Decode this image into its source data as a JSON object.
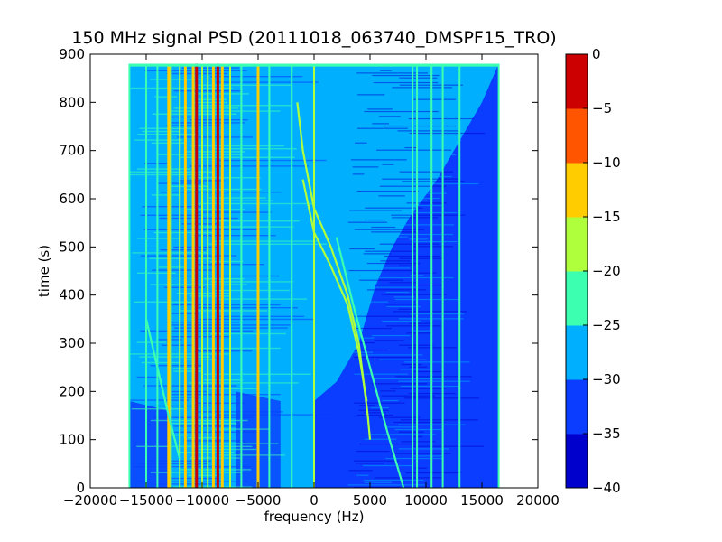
{
  "chart_data": {
    "type": "heatmap",
    "title": "150 MHz signal PSD (20111018_063740_DMSPF15_TRO)",
    "xlabel": "frequency (Hz)",
    "ylabel": "time (s)",
    "xlim": [
      -20000,
      20000
    ],
    "ylim": [
      0,
      900
    ],
    "x_ticks": [
      -20000,
      -15000,
      -10000,
      -5000,
      0,
      5000,
      10000,
      15000,
      20000
    ],
    "x_tick_labels": [
      "−20000",
      "−15000",
      "−10000",
      "−5000",
      "0",
      "5000",
      "10000",
      "15000",
      "20000"
    ],
    "y_ticks": [
      0,
      100,
      200,
      300,
      400,
      500,
      600,
      700,
      800,
      900
    ],
    "y_tick_labels": [
      "0",
      "100",
      "200",
      "300",
      "400",
      "500",
      "600",
      "700",
      "800",
      "900"
    ],
    "data_extent": {
      "freq_min": -16500,
      "freq_max": 16500,
      "time_min": 0,
      "time_max": 880
    },
    "colorbar": {
      "range": [
        -40,
        0
      ],
      "levels": [
        -40,
        -35,
        -30,
        -25,
        -20,
        -15,
        -10,
        -5,
        0
      ],
      "tick_labels": [
        "−40",
        "−35",
        "−30",
        "−25",
        "−20",
        "−15",
        "−10",
        "−5",
        "0"
      ],
      "colors": [
        "#0000cc",
        "#0a3dff",
        "#00b0ff",
        "#3dffb0",
        "#b0ff3d",
        "#ffcc00",
        "#ff5500",
        "#cc0000"
      ]
    },
    "background_level": -30,
    "lower_right_level": -35,
    "vertical_lines": [
      {
        "freq": -16500,
        "level": -25
      },
      {
        "freq": -15000,
        "level": -25
      },
      {
        "freq": -14000,
        "level": -25
      },
      {
        "freq": -13000,
        "level": -15
      },
      {
        "freq": -12800,
        "level": -20
      },
      {
        "freq": -12000,
        "level": -20
      },
      {
        "freq": -11500,
        "level": -15
      },
      {
        "freq": -10800,
        "level": -15
      },
      {
        "freq": -10500,
        "level": -5
      },
      {
        "freq": -10000,
        "level": -20
      },
      {
        "freq": -9500,
        "level": -20
      },
      {
        "freq": -9000,
        "level": -15
      },
      {
        "freq": -8600,
        "level": -5
      },
      {
        "freq": -8200,
        "level": -15
      },
      {
        "freq": -7500,
        "level": -20
      },
      {
        "freq": -6500,
        "level": -25
      },
      {
        "freq": -5000,
        "level": -15
      },
      {
        "freq": -4000,
        "level": -25
      },
      {
        "freq": -2000,
        "level": -25
      },
      {
        "freq": 0,
        "level": -20
      },
      {
        "freq": 8800,
        "level": -25
      },
      {
        "freq": 9200,
        "level": -25
      },
      {
        "freq": 10500,
        "level": -25
      },
      {
        "freq": 11500,
        "level": -25
      },
      {
        "freq": 13000,
        "level": -25
      },
      {
        "freq": 16500,
        "level": -25
      }
    ],
    "chirp_tracks": [
      {
        "level": -20,
        "points": [
          [
            -1500,
            800
          ],
          [
            -1000,
            700
          ],
          [
            0,
            580
          ],
          [
            1500,
            500
          ],
          [
            3000,
            400
          ],
          [
            4000,
            300
          ],
          [
            4800,
            150
          ],
          [
            5000,
            100
          ]
        ]
      },
      {
        "level": -20,
        "points": [
          [
            -1000,
            640
          ],
          [
            0,
            530
          ],
          [
            1500,
            460
          ],
          [
            3000,
            380
          ],
          [
            4000,
            280
          ],
          [
            4700,
            180
          ]
        ]
      },
      {
        "level": -25,
        "points": [
          [
            2000,
            520
          ],
          [
            3500,
            380
          ],
          [
            5000,
            250
          ],
          [
            6500,
            120
          ],
          [
            8000,
            0
          ]
        ]
      },
      {
        "level": -25,
        "points": [
          [
            -15000,
            350
          ],
          [
            -14000,
            250
          ],
          [
            -13000,
            150
          ],
          [
            -12000,
            60
          ]
        ]
      }
    ]
  }
}
